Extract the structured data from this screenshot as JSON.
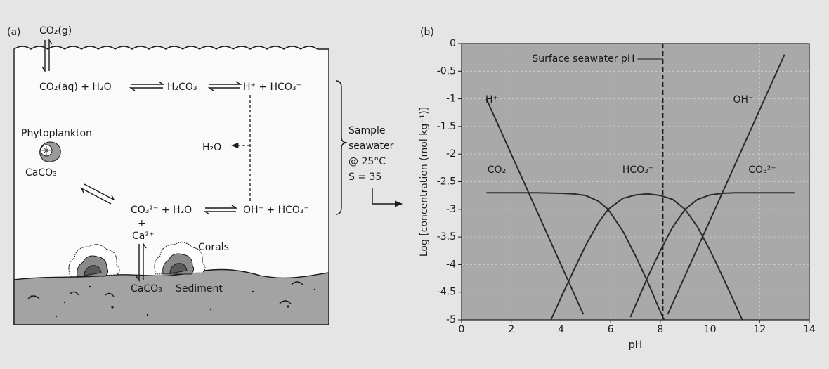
{
  "panel_a": {
    "label": "(a)",
    "co2_gas": "CO₂(g)",
    "co2_aq": "CO₂(aq) + H₂O",
    "h2co3": "H₂CO₃",
    "h_hco3": "H⁺ + HCO₃⁻",
    "phytoplankton": "Phytoplankton",
    "caco3_phyto": "CaCO₃",
    "h2o": "H₂O",
    "co3_h2o": "CO₃²⁻ + H₂O",
    "oh_hco3": "OH⁻ + HCO₃⁻",
    "plus": "+",
    "ca": "Ca²⁺",
    "corals": "Corals",
    "caco3_sediment": "CaCO₃",
    "sediment": "Sediment",
    "sample": [
      "Sample",
      "seawater",
      "@ 25°C",
      "S = 35"
    ]
  },
  "panel_b_label": "(b)",
  "chart_data": {
    "type": "line",
    "xlabel": "pH",
    "ylabel": "Log [concentration (mol kg⁻¹)]",
    "xlim": [
      0,
      14
    ],
    "xticks": [
      0,
      2,
      4,
      6,
      8,
      10,
      12,
      14
    ],
    "ylim": [
      -5,
      0
    ],
    "yticks": [
      0,
      -0.5,
      -1,
      -1.5,
      -2,
      -2.5,
      -3,
      -3.5,
      -4,
      -4.5,
      -5
    ],
    "grid": true,
    "surface_ph": 8.1,
    "surface_ph_label": "Surface seawater pH",
    "series": [
      {
        "name": "H⁺",
        "color": "#2b2b2b",
        "x": [
          1,
          4.9
        ],
        "values": [
          -1,
          -4.9
        ]
      },
      {
        "name": "OH⁻",
        "color": "#2b2b2b",
        "x": [
          8.3,
          13
        ],
        "values": [
          -4.9,
          -0.2
        ]
      },
      {
        "name": "CO₂",
        "color": "#2b2b2b",
        "x": [
          1,
          2,
          3,
          4,
          4.5,
          5,
          5.5,
          5.9,
          6.5,
          7,
          7.5,
          8,
          8.15
        ],
        "values": [
          -2.7,
          -2.7,
          -2.7,
          -2.71,
          -2.72,
          -2.75,
          -2.85,
          -3,
          -3.4,
          -3.84,
          -4.32,
          -4.85,
          -5
        ]
      },
      {
        "name": "HCO₃⁻",
        "color": "#2b2b2b",
        "x": [
          3.6,
          4,
          4.5,
          5,
          5.5,
          5.9,
          6.5,
          7,
          7.5,
          8,
          8.5,
          9,
          9.5,
          10,
          10.5,
          11,
          11.3
        ],
        "values": [
          -5,
          -4.6,
          -4.12,
          -3.65,
          -3.25,
          -3,
          -2.8,
          -2.74,
          -2.72,
          -2.75,
          -2.82,
          -3,
          -3.32,
          -3.74,
          -4.21,
          -4.7,
          -5
        ]
      },
      {
        "name": "CO₃²⁻",
        "color": "#2b2b2b",
        "x": [
          6.8,
          7,
          7.5,
          8,
          8.5,
          9,
          9.5,
          10,
          10.5,
          11,
          12,
          13,
          13.4
        ],
        "values": [
          -4.95,
          -4.74,
          -4.22,
          -3.75,
          -3.32,
          -3,
          -2.82,
          -2.74,
          -2.71,
          -2.7,
          -2.7,
          -2.7,
          -2.7
        ]
      }
    ]
  }
}
